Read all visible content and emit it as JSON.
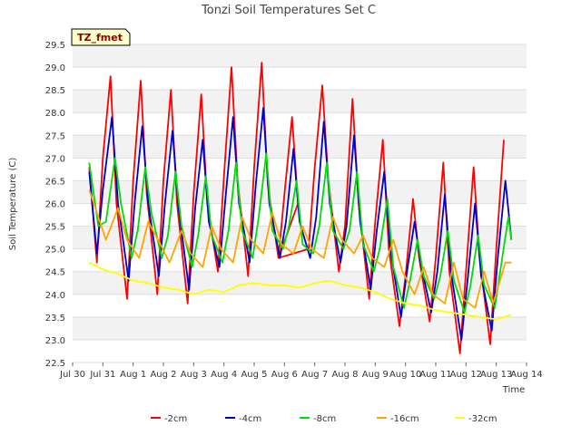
{
  "chart_data": {
    "type": "line",
    "title": "Tonzi Soil Temperatures Set C",
    "xlabel": "Time",
    "ylabel": "Soil Temperature (C)",
    "badge": "TZ_fmet",
    "ylim": [
      22.5,
      29.5
    ],
    "xlim": [
      0,
      15
    ],
    "grid": true,
    "legend_position": "bottom",
    "x_ticks": [
      {
        "v": 0,
        "label": "Jul 30"
      },
      {
        "v": 1,
        "label": "Jul 31"
      },
      {
        "v": 2,
        "label": "Aug 1"
      },
      {
        "v": 3,
        "label": "Aug 2"
      },
      {
        "v": 4,
        "label": "Aug 3"
      },
      {
        "v": 5,
        "label": "Aug 4"
      },
      {
        "v": 6,
        "label": "Aug 5"
      },
      {
        "v": 7,
        "label": "Aug 6"
      },
      {
        "v": 8,
        "label": "Aug 7"
      },
      {
        "v": 9,
        "label": "Aug 8"
      },
      {
        "v": 10,
        "label": "Aug 9"
      },
      {
        "v": 11,
        "label": "Aug 10"
      },
      {
        "v": 12,
        "label": "Aug 11"
      },
      {
        "v": 13,
        "label": "Aug 12"
      },
      {
        "v": 14,
        "label": "Aug 13"
      },
      {
        "v": 15,
        "label": "Aug 14"
      }
    ],
    "y_ticks": [
      "22.5",
      "23.0",
      "23.5",
      "24.0",
      "24.5",
      "25.0",
      "25.5",
      "26.0",
      "26.5",
      "27.0",
      "27.5",
      "28.0",
      "28.5",
      "29.0",
      "29.5"
    ],
    "series": [
      {
        "name": "-2cm",
        "color": "#ff0000",
        "x": [
          0.55,
          0.8,
          1.0,
          1.25,
          1.45,
          1.8,
          2.0,
          2.25,
          2.45,
          2.8,
          3.0,
          3.25,
          3.45,
          3.8,
          4.0,
          4.25,
          4.45,
          4.8,
          5.0,
          5.25,
          5.45,
          5.8,
          6.0,
          6.25,
          6.45,
          6.8,
          7.0,
          7.25,
          7.45,
          6.8,
          7.8,
          8.0,
          8.25,
          8.45,
          8.8,
          9.0,
          9.25,
          9.45,
          9.8,
          10.0,
          10.25,
          10.45,
          10.8,
          11.0,
          11.25,
          11.45,
          11.8,
          12.0,
          12.25,
          12.45,
          12.8,
          13.0,
          13.25,
          13.45,
          13.8,
          14.0,
          14.25
        ],
        "y": [
          26.8,
          24.7,
          27.0,
          28.8,
          26.0,
          23.9,
          26.5,
          28.7,
          26.2,
          24.0,
          26.5,
          28.5,
          26.0,
          23.8,
          26.2,
          28.4,
          26.0,
          24.5,
          26.6,
          29.0,
          26.5,
          24.4,
          26.8,
          29.1,
          26.4,
          24.8,
          26.2,
          27.9,
          26.0,
          24.8,
          25.0,
          26.8,
          28.6,
          26.5,
          24.5,
          25.5,
          28.3,
          26.0,
          23.9,
          25.6,
          27.4,
          25.0,
          23.3,
          24.4,
          26.1,
          24.8,
          23.4,
          24.8,
          26.9,
          24.5,
          22.7,
          24.5,
          26.8,
          24.8,
          22.9,
          25.0,
          27.4
        ]
      },
      {
        "name": "-4cm",
        "color": "#0000cc",
        "x": [
          0.55,
          0.8,
          1.0,
          1.3,
          1.5,
          1.85,
          2.05,
          2.3,
          2.5,
          2.85,
          3.05,
          3.3,
          3.5,
          3.85,
          4.05,
          4.3,
          4.5,
          4.85,
          5.05,
          5.3,
          5.5,
          5.85,
          6.05,
          6.3,
          6.5,
          6.85,
          7.05,
          7.3,
          7.5,
          7.85,
          8.05,
          8.3,
          8.5,
          8.85,
          9.05,
          9.3,
          9.5,
          9.85,
          10.05,
          10.3,
          10.5,
          10.85,
          11.05,
          11.3,
          11.5,
          11.85,
          12.05,
          12.3,
          12.5,
          12.85,
          13.05,
          13.3,
          13.5,
          13.85,
          14.05,
          14.3,
          14.5
        ],
        "y": [
          26.7,
          24.9,
          26.3,
          27.9,
          26.0,
          24.3,
          26.0,
          27.7,
          26.0,
          24.4,
          26.0,
          27.6,
          25.9,
          24.1,
          25.9,
          27.4,
          25.6,
          24.6,
          26.1,
          27.9,
          26.0,
          24.7,
          26.4,
          28.1,
          26.0,
          24.8,
          25.6,
          27.2,
          25.6,
          24.8,
          25.7,
          27.8,
          26.0,
          24.7,
          25.5,
          27.5,
          25.6,
          24.1,
          25.4,
          26.7,
          25.0,
          23.5,
          24.5,
          25.6,
          24.7,
          23.6,
          24.5,
          26.2,
          24.5,
          23.0,
          24.3,
          26.0,
          24.4,
          23.2,
          24.8,
          26.5,
          25.2
        ]
      },
      {
        "name": "-8cm",
        "color": "#00dd00",
        "x": [
          0.55,
          0.85,
          1.1,
          1.4,
          1.6,
          1.95,
          2.15,
          2.4,
          2.6,
          2.95,
          3.15,
          3.4,
          3.6,
          3.95,
          4.15,
          4.4,
          4.6,
          4.95,
          5.15,
          5.4,
          5.6,
          5.95,
          6.15,
          6.4,
          6.6,
          6.95,
          7.15,
          7.4,
          7.6,
          7.95,
          8.15,
          8.4,
          8.6,
          8.95,
          9.15,
          9.4,
          9.6,
          9.95,
          10.15,
          10.4,
          10.6,
          10.95,
          11.15,
          11.4,
          11.6,
          11.95,
          12.15,
          12.4,
          12.6,
          12.95,
          13.15,
          13.4,
          13.6,
          13.95,
          14.15,
          14.4,
          14.5
        ],
        "y": [
          26.9,
          25.5,
          25.6,
          27.0,
          26.0,
          24.8,
          25.4,
          26.8,
          25.8,
          24.8,
          25.3,
          26.7,
          25.5,
          24.6,
          25.3,
          26.6,
          25.3,
          24.7,
          25.4,
          26.9,
          25.4,
          24.8,
          25.7,
          27.1,
          25.4,
          25.0,
          25.5,
          26.5,
          25.1,
          24.9,
          25.5,
          26.9,
          25.4,
          25.0,
          25.4,
          26.7,
          25.1,
          24.5,
          25.0,
          26.1,
          24.6,
          23.7,
          24.3,
          25.2,
          24.4,
          23.9,
          24.4,
          25.4,
          24.3,
          23.6,
          24.2,
          25.3,
          24.2,
          23.7,
          24.6,
          25.7,
          25.2
        ]
      },
      {
        "name": "-16cm",
        "color": "#ffa500",
        "x": [
          0.55,
          0.8,
          1.1,
          1.5,
          1.8,
          2.2,
          2.5,
          2.9,
          3.2,
          3.6,
          3.9,
          4.3,
          4.6,
          4.9,
          5.3,
          5.6,
          5.9,
          6.3,
          6.6,
          6.9,
          7.3,
          7.6,
          7.9,
          8.3,
          8.6,
          8.9,
          9.3,
          9.6,
          9.9,
          10.3,
          10.6,
          10.9,
          11.3,
          11.6,
          11.9,
          12.3,
          12.6,
          12.9,
          13.3,
          13.6,
          13.9,
          14.3,
          14.5
        ],
        "y": [
          26.3,
          25.8,
          25.2,
          25.9,
          25.2,
          24.8,
          25.6,
          25.1,
          24.7,
          25.4,
          24.9,
          24.6,
          25.5,
          25.0,
          24.7,
          25.7,
          25.2,
          24.9,
          25.8,
          25.1,
          24.9,
          25.5,
          25.0,
          24.8,
          25.7,
          25.2,
          24.9,
          25.3,
          24.8,
          24.6,
          25.2,
          24.5,
          24.0,
          24.6,
          24.0,
          23.8,
          24.7,
          23.9,
          23.7,
          24.5,
          23.8,
          24.7,
          24.7
        ]
      },
      {
        "name": "-32cm",
        "color": "#ffff00",
        "x": [
          0.55,
          1.0,
          1.5,
          2.0,
          2.5,
          3.0,
          3.5,
          4.0,
          4.5,
          5.0,
          5.5,
          6.0,
          6.5,
          7.0,
          7.5,
          8.0,
          8.5,
          9.0,
          9.5,
          10.0,
          10.5,
          11.0,
          11.5,
          12.0,
          12.5,
          13.0,
          13.5,
          14.0,
          14.5
        ],
        "y": [
          24.7,
          24.55,
          24.45,
          24.3,
          24.25,
          24.15,
          24.1,
          24.0,
          24.1,
          24.05,
          24.2,
          24.25,
          24.2,
          24.2,
          24.15,
          24.25,
          24.3,
          24.2,
          24.15,
          24.05,
          23.9,
          23.8,
          23.75,
          23.65,
          23.6,
          23.55,
          23.5,
          23.45,
          23.55
        ]
      }
    ]
  }
}
